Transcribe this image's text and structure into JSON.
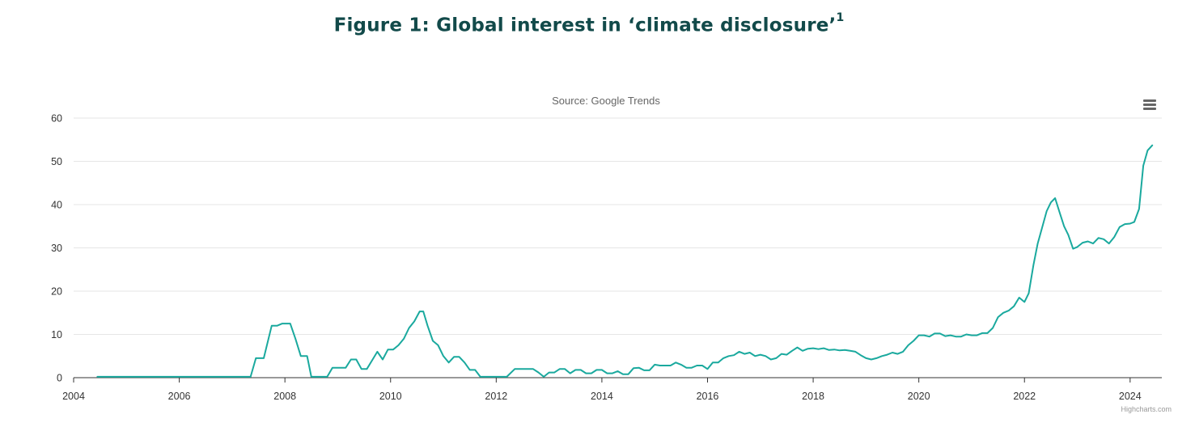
{
  "figure": {
    "title": "Figure 1: Global interest in ‘climate disclosure’",
    "title_footnote": "1"
  },
  "menu": {
    "icon": "hamburger-menu-icon"
  },
  "credits": "Highcharts.com",
  "chart_data": {
    "type": "line",
    "title": "",
    "subtitle": "Source: Google Trends",
    "xlabel": "",
    "ylabel": "",
    "xlim": [
      2004.0,
      2024.6
    ],
    "ylim": [
      0,
      60
    ],
    "x_ticks": [
      "2004",
      "2006",
      "2008",
      "2010",
      "2012",
      "2014",
      "2016",
      "2018",
      "2020",
      "2022",
      "2024"
    ],
    "y_ticks": [
      "0",
      "10",
      "20",
      "30",
      "40",
      "50",
      "60"
    ],
    "grid": "horizontal",
    "legend": "none",
    "line_color": "#1aa99e",
    "series": [
      {
        "x": [
          2004.45,
          2005.0,
          2005.5,
          2006.0,
          2006.5,
          2007.0,
          2007.35,
          2007.45,
          2007.6,
          2007.75,
          2007.85,
          2007.95,
          2008.1,
          2008.2,
          2008.3,
          2008.42,
          2008.5,
          2008.65,
          2008.8,
          2008.9,
          2009.0,
          2009.15,
          2009.25,
          2009.35,
          2009.45,
          2009.55,
          2009.65,
          2009.75,
          2009.85,
          2009.95,
          2010.05,
          2010.15,
          2010.25,
          2010.35,
          2010.45,
          2010.55,
          2010.62,
          2010.7,
          2010.8,
          2010.9,
          2011.0,
          2011.1,
          2011.2,
          2011.3,
          2011.4,
          2011.5,
          2011.6,
          2011.7,
          2011.8,
          2011.9,
          2012.0,
          2012.1,
          2012.2,
          2012.35,
          2012.5,
          2012.6,
          2012.7,
          2012.8,
          2012.9,
          2013.0,
          2013.1,
          2013.2,
          2013.3,
          2013.4,
          2013.5,
          2013.6,
          2013.7,
          2013.8,
          2013.9,
          2014.0,
          2014.1,
          2014.2,
          2014.3,
          2014.4,
          2014.5,
          2014.6,
          2014.7,
          2014.8,
          2014.9,
          2015.0,
          2015.1,
          2015.2,
          2015.3,
          2015.4,
          2015.5,
          2015.6,
          2015.7,
          2015.8,
          2015.9,
          2016.0,
          2016.1,
          2016.2,
          2016.3,
          2016.4,
          2016.5,
          2016.6,
          2016.7,
          2016.8,
          2016.9,
          2017.0,
          2017.1,
          2017.2,
          2017.3,
          2017.4,
          2017.5,
          2017.6,
          2017.7,
          2017.8,
          2017.9,
          2018.0,
          2018.1,
          2018.2,
          2018.3,
          2018.4,
          2018.5,
          2018.6,
          2018.7,
          2018.8,
          2018.9,
          2019.0,
          2019.1,
          2019.2,
          2019.3,
          2019.4,
          2019.5,
          2019.6,
          2019.7,
          2019.8,
          2019.9,
          2020.0,
          2020.1,
          2020.2,
          2020.3,
          2020.4,
          2020.5,
          2020.6,
          2020.7,
          2020.8,
          2020.9,
          2021.0,
          2021.1,
          2021.2,
          2021.3,
          2021.4,
          2021.5,
          2021.6,
          2021.7,
          2021.8,
          2021.9,
          2022.0,
          2022.08,
          2022.17,
          2022.25,
          2022.33,
          2022.42,
          2022.5,
          2022.58,
          2022.67,
          2022.75,
          2022.83,
          2022.92,
          2023.0,
          2023.1,
          2023.2,
          2023.3,
          2023.4,
          2023.5,
          2023.6,
          2023.7,
          2023.8,
          2023.9,
          2024.0,
          2024.08,
          2024.17,
          2024.25,
          2024.33,
          2024.42
        ],
        "y": [
          0.2,
          0.2,
          0.2,
          0.2,
          0.2,
          0.2,
          0.2,
          4.5,
          4.5,
          12.0,
          12.0,
          12.5,
          12.5,
          9.0,
          5.0,
          5.0,
          0.2,
          0.2,
          0.2,
          2.3,
          2.3,
          2.3,
          4.2,
          4.2,
          2.0,
          2.0,
          4.0,
          6.0,
          4.2,
          6.5,
          6.5,
          7.5,
          9.0,
          11.5,
          13.0,
          15.3,
          15.3,
          12.0,
          8.5,
          7.5,
          5.0,
          3.5,
          4.8,
          4.8,
          3.5,
          1.8,
          1.8,
          0.2,
          0.2,
          0.2,
          0.2,
          0.2,
          0.2,
          2.0,
          2.0,
          2.0,
          2.0,
          1.2,
          0.2,
          1.2,
          1.2,
          2.0,
          2.0,
          1.0,
          1.8,
          1.8,
          1.0,
          1.0,
          1.8,
          1.8,
          1.0,
          1.0,
          1.5,
          0.8,
          0.8,
          2.2,
          2.3,
          1.7,
          1.7,
          3.0,
          2.8,
          2.8,
          2.8,
          3.5,
          3.0,
          2.3,
          2.3,
          2.8,
          2.8,
          2.0,
          3.5,
          3.5,
          4.5,
          5.0,
          5.2,
          6.0,
          5.5,
          5.8,
          5.0,
          5.3,
          5.0,
          4.2,
          4.5,
          5.5,
          5.3,
          6.2,
          7.0,
          6.2,
          6.7,
          6.8,
          6.6,
          6.8,
          6.4,
          6.5,
          6.3,
          6.4,
          6.2,
          6.0,
          5.2,
          4.5,
          4.2,
          4.5,
          5.0,
          5.3,
          5.8,
          5.5,
          6.0,
          7.5,
          8.5,
          9.8,
          9.8,
          9.5,
          10.2,
          10.2,
          9.6,
          9.8,
          9.5,
          9.5,
          10.0,
          9.8,
          9.8,
          10.3,
          10.3,
          11.5,
          14.0,
          15.0,
          15.5,
          16.5,
          18.5,
          17.5,
          19.5,
          26.0,
          31.0,
          34.5,
          38.5,
          40.5,
          41.5,
          38.0,
          35.0,
          33.0,
          29.8,
          30.2,
          31.2,
          31.5,
          31.0,
          32.3,
          32.0,
          31.0,
          32.5,
          34.8,
          35.5,
          35.6,
          36.0,
          39.0,
          49.0,
          52.5,
          53.7
        ]
      }
    ]
  }
}
